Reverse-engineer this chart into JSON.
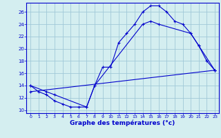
{
  "xlabel": "Graphe des températures (°c)",
  "bg_color": "#d4eef0",
  "grid_color": "#a0c8d8",
  "line_color": "#0000cc",
  "xlim": [
    -0.5,
    23.5
  ],
  "ylim": [
    9.5,
    27.5
  ],
  "yticks": [
    10,
    12,
    14,
    16,
    18,
    20,
    22,
    24,
    26
  ],
  "xticks": [
    0,
    1,
    2,
    3,
    4,
    5,
    6,
    7,
    8,
    9,
    10,
    11,
    12,
    13,
    14,
    15,
    16,
    17,
    18,
    19,
    20,
    21,
    22,
    23
  ],
  "curve1_x": [
    0,
    1,
    2,
    3,
    4,
    5,
    6,
    7,
    8,
    9,
    10,
    11,
    12,
    13,
    14,
    15,
    16,
    17,
    18,
    19,
    20,
    21,
    22,
    23
  ],
  "curve1_y": [
    14,
    13,
    12.5,
    11.5,
    11,
    10.5,
    10.5,
    10.5,
    14,
    17,
    17,
    21,
    22.5,
    24,
    26,
    27,
    27,
    26,
    24.5,
    24,
    22.5,
    20.5,
    18,
    16.5
  ],
  "curve2_x": [
    0,
    2,
    3,
    7,
    8,
    14,
    15,
    16,
    20,
    21,
    23
  ],
  "curve2_y": [
    14,
    13,
    12.5,
    10.5,
    14,
    24,
    24.5,
    24,
    22.5,
    20.5,
    16.5
  ],
  "curve3_x": [
    0,
    23
  ],
  "curve3_y": [
    13,
    16.5
  ]
}
